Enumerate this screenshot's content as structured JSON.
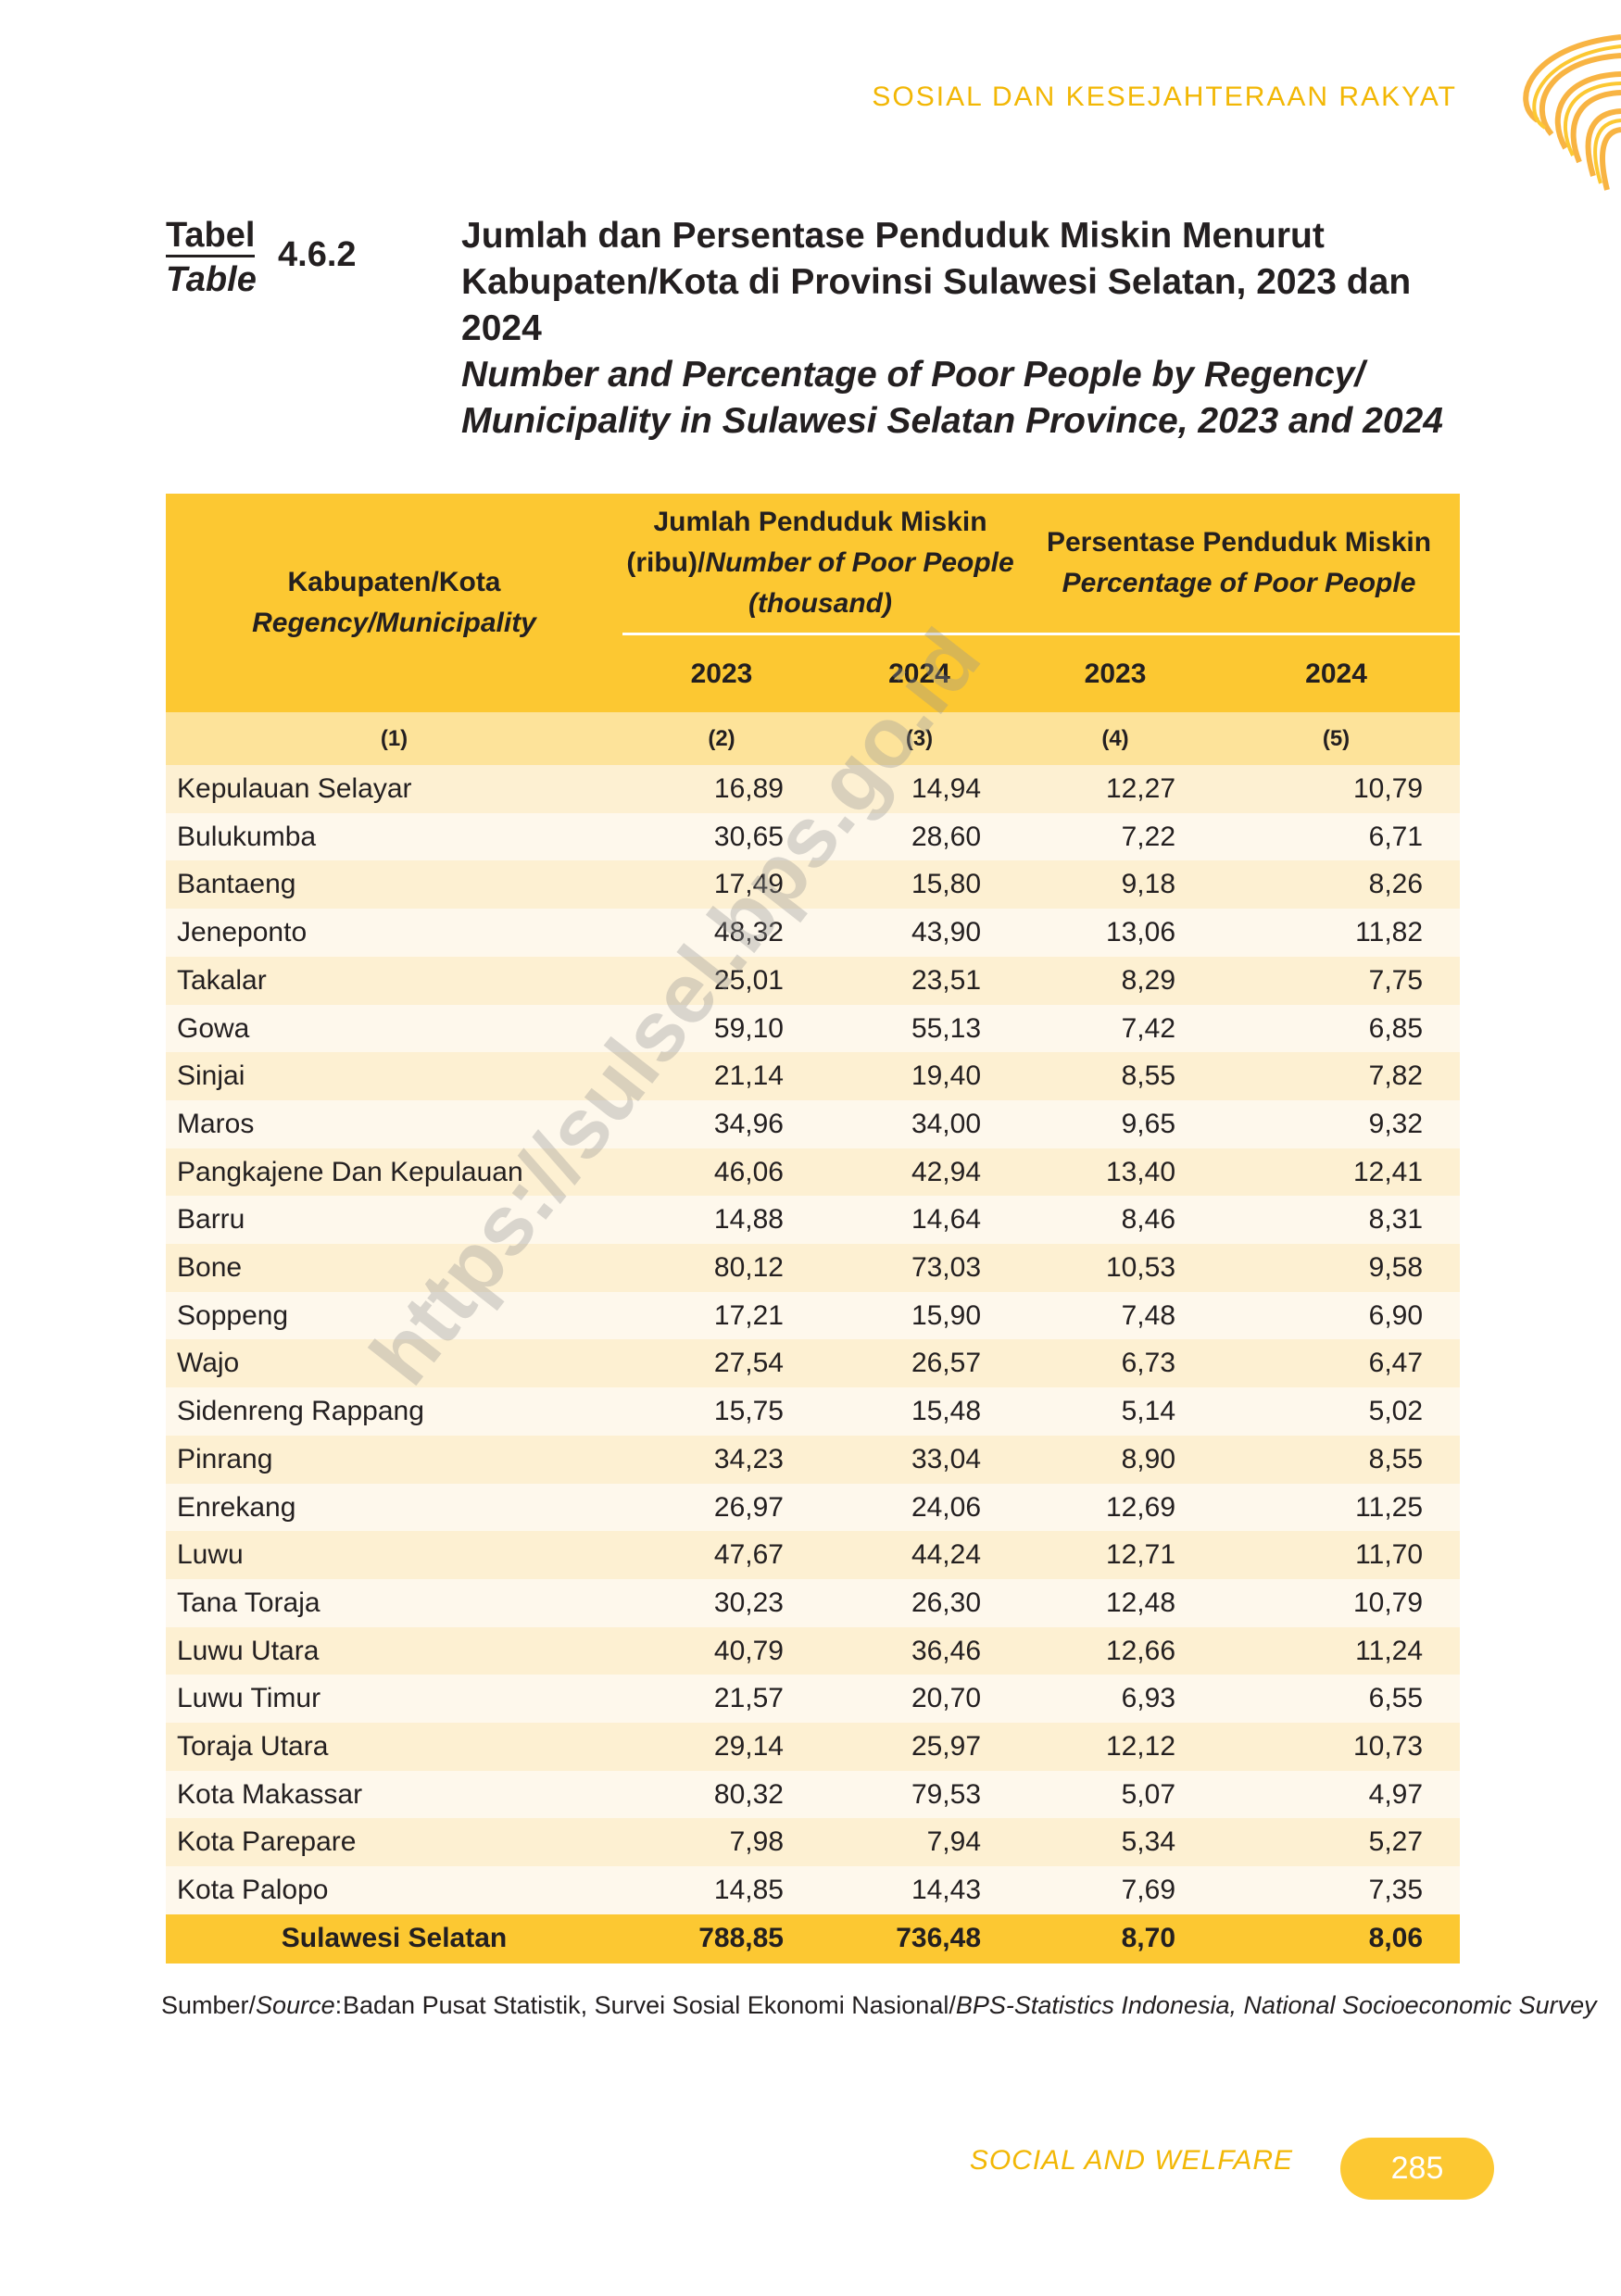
{
  "header": {
    "section": "SOSIAL DAN KESEJAHTERAAN RAKYAT"
  },
  "table": {
    "label": "Tabel",
    "label_en": "Table",
    "number": "4.6.2",
    "title": "Jumlah dan Persentase Penduduk Miskin Menurut Kabupaten/Kota di Provinsi Sulawesi Selatan, 2023 dan 2024",
    "title_en": "Number and Percentage of Poor People by Regency/ Municipality in Sulawesi Selatan Province, 2023 and 2024",
    "col_region": "Kabupaten/Kota",
    "col_region_en": "Regency/Municipality",
    "group1": "Jumlah Penduduk Miskin (ribu)/",
    "group1_en": "Number of Poor People (thousand)",
    "group2": "Persentase Penduduk Miskin",
    "group2_en": "Percentage of Poor People",
    "years": [
      "2023",
      "2024",
      "2023",
      "2024"
    ],
    "col_numbers": [
      "(1)",
      "(2)",
      "(3)",
      "(4)",
      "(5)"
    ],
    "rows": [
      [
        "Kepulauan Selayar",
        "16,89",
        "14,94",
        "12,27",
        "10,79"
      ],
      [
        "Bulukumba",
        "30,65",
        "28,60",
        "7,22",
        "6,71"
      ],
      [
        "Bantaeng",
        "17,49",
        "15,80",
        "9,18",
        "8,26"
      ],
      [
        "Jeneponto",
        "48,32",
        "43,90",
        "13,06",
        "11,82"
      ],
      [
        "Takalar",
        "25,01",
        "23,51",
        "8,29",
        "7,75"
      ],
      [
        "Gowa",
        "59,10",
        "55,13",
        "7,42",
        "6,85"
      ],
      [
        "Sinjai",
        "21,14",
        "19,40",
        "8,55",
        "7,82"
      ],
      [
        "Maros",
        "34,96",
        "34,00",
        "9,65",
        "9,32"
      ],
      [
        "Pangkajene Dan Kepulauan",
        "46,06",
        "42,94",
        "13,40",
        "12,41"
      ],
      [
        "Barru",
        "14,88",
        "14,64",
        "8,46",
        "8,31"
      ],
      [
        "Bone",
        "80,12",
        "73,03",
        "10,53",
        "9,58"
      ],
      [
        "Soppeng",
        "17,21",
        "15,90",
        "7,48",
        "6,90"
      ],
      [
        "Wajo",
        "27,54",
        "26,57",
        "6,73",
        "6,47"
      ],
      [
        "Sidenreng Rappang",
        "15,75",
        "15,48",
        "5,14",
        "5,02"
      ],
      [
        "Pinrang",
        "34,23",
        "33,04",
        "8,90",
        "8,55"
      ],
      [
        "Enrekang",
        "26,97",
        "24,06",
        "12,69",
        "11,25"
      ],
      [
        "Luwu",
        "47,67",
        "44,24",
        "12,71",
        "11,70"
      ],
      [
        "Tana Toraja",
        "30,23",
        "26,30",
        "12,48",
        "10,79"
      ],
      [
        "Luwu Utara",
        "40,79",
        "36,46",
        "12,66",
        "11,24"
      ],
      [
        "Luwu Timur",
        "21,57",
        "20,70",
        "6,93",
        "6,55"
      ],
      [
        "Toraja Utara",
        "29,14",
        "25,97",
        "12,12",
        "10,73"
      ],
      [
        "Kota Makassar",
        "80,32",
        "79,53",
        "5,07",
        "4,97"
      ],
      [
        "Kota Parepare",
        "7,98",
        "7,94",
        "5,34",
        "5,27"
      ],
      [
        "Kota Palopo",
        "14,85",
        "14,43",
        "7,69",
        "7,35"
      ]
    ],
    "total": [
      "Sulawesi Selatan",
      "788,85",
      "736,48",
      "8,70",
      "8,06"
    ],
    "source_label": "Sumber/",
    "source_label_en": "Source",
    "source": "Badan Pusat Statistik, Survei Sosial Ekonomi Nasional/",
    "source_en": "BPS-Statistics Indonesia, National Socioeconomic Survey",
    "watermark": "https://sulsel.bps.go.id"
  },
  "footer": {
    "section": "SOCIAL AND WELFARE",
    "page": "285"
  }
}
